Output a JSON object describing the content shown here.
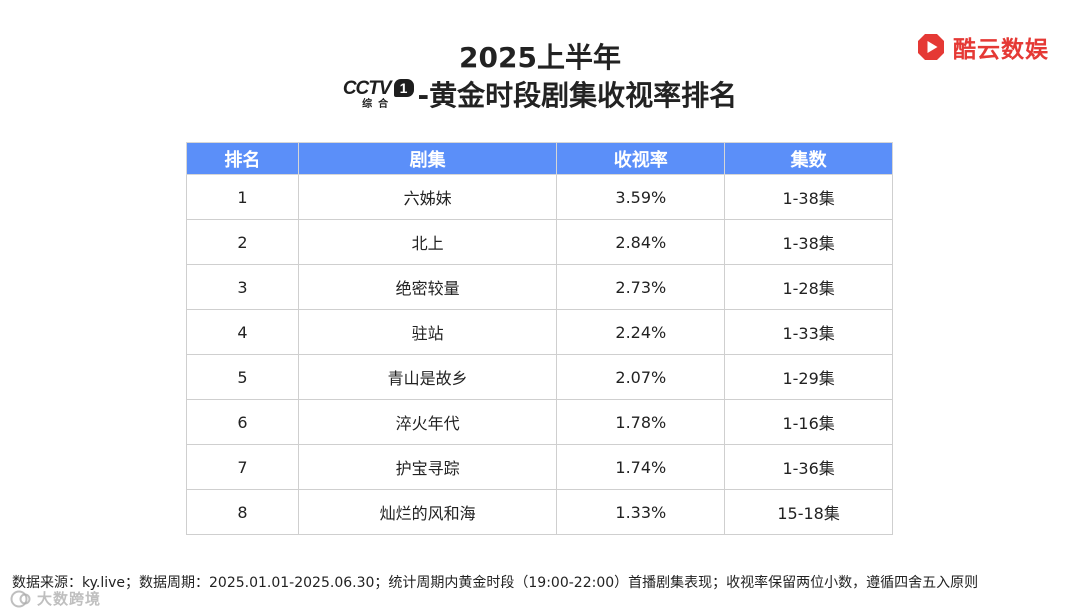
{
  "brand": {
    "name": "酷云数娱",
    "color": "#e53935",
    "icon": "play-logo-icon"
  },
  "title": {
    "main": "2025上半年",
    "channel_logo": {
      "letters": "CCTV",
      "number": "1",
      "cn": "综合",
      "icon": "cctv1-logo"
    },
    "rest": "-黄金时段剧集收视率排名"
  },
  "table": {
    "header_color": "#5b8ff9",
    "headers": [
      "排名",
      "剧集",
      "收视率",
      "集数"
    ],
    "rows": [
      {
        "rank": "1",
        "title": "六姊妹",
        "rating": "3.59%",
        "episodes": "1-38集"
      },
      {
        "rank": "2",
        "title": "北上",
        "rating": "2.84%",
        "episodes": "1-38集"
      },
      {
        "rank": "3",
        "title": "绝密较量",
        "rating": "2.73%",
        "episodes": "1-28集"
      },
      {
        "rank": "4",
        "title": "驻站",
        "rating": "2.24%",
        "episodes": "1-33集"
      },
      {
        "rank": "5",
        "title": "青山是故乡",
        "rating": "2.07%",
        "episodes": "1-29集"
      },
      {
        "rank": "6",
        "title": "淬火年代",
        "rating": "1.78%",
        "episodes": "1-16集"
      },
      {
        "rank": "7",
        "title": "护宝寻踪",
        "rating": "1.74%",
        "episodes": "1-36集"
      },
      {
        "rank": "8",
        "title": "灿烂的风和海",
        "rating": "1.33%",
        "episodes": "15-18集"
      }
    ]
  },
  "footnote": "数据来源：ky.live；数据周期：2025.01.01-2025.06.30；统计周期内黄金时段（19:00-22:00）首播剧集表现；收视率保留两位小数，遵循四舍五入原则",
  "watermark": {
    "text": "大数跨境",
    "icon": "watermark-logo-icon"
  }
}
